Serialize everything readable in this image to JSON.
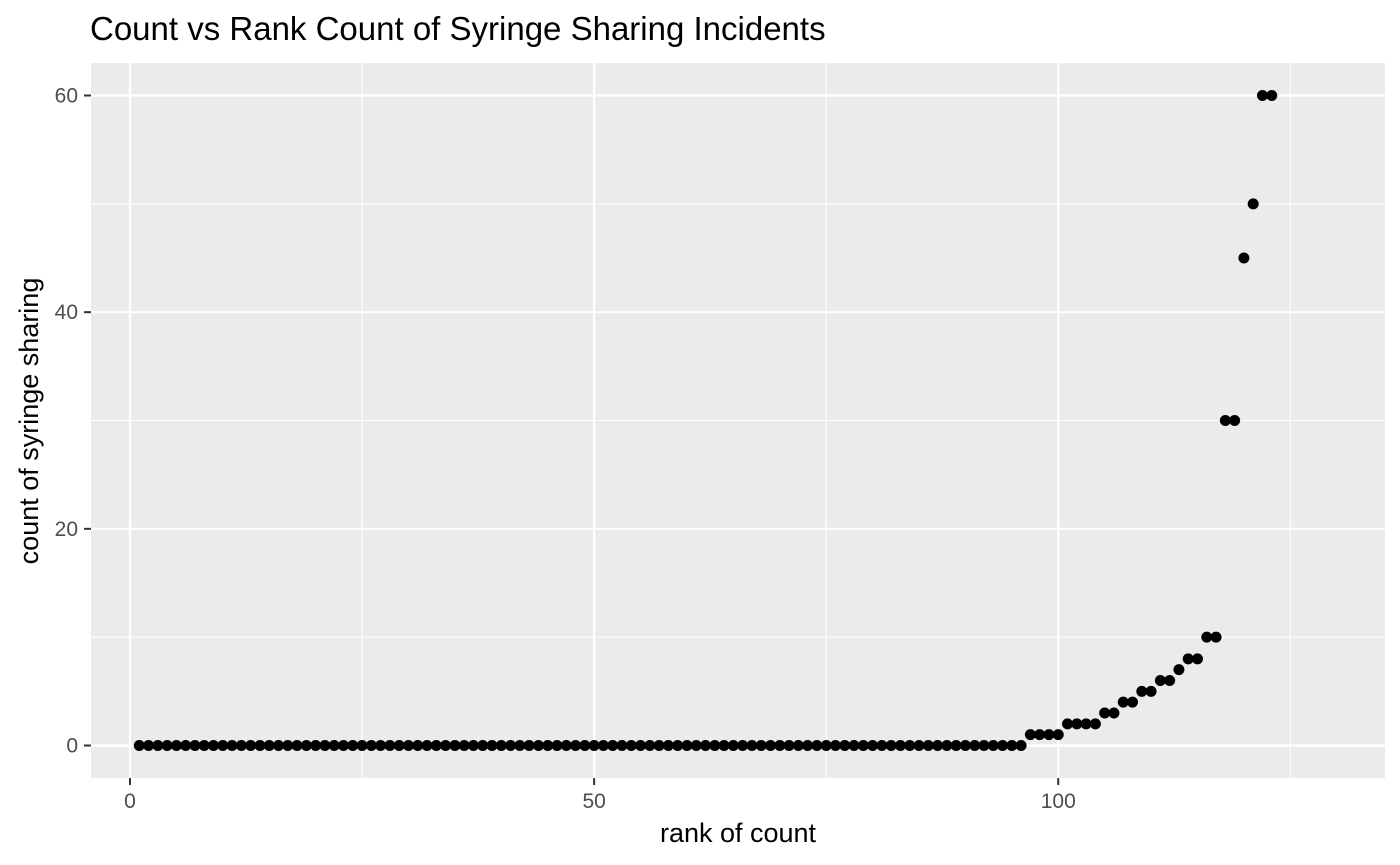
{
  "chart_data": {
    "type": "scatter",
    "title": "Count vs Rank Count of Syringe Sharing Incidents",
    "xlabel": "rank of count",
    "ylabel": "count of syringe sharing",
    "xlim": [
      -4.2,
      135.2
    ],
    "ylim": [
      -3,
      63
    ],
    "x_ticks": [
      0,
      50,
      100
    ],
    "x_tick_labels": [
      "0",
      "50",
      "100"
    ],
    "y_ticks": [
      0,
      20,
      40,
      60
    ],
    "y_tick_labels": [
      "0",
      "20",
      "40",
      "60"
    ],
    "grid": true,
    "legend": "none",
    "colors": {
      "panel": "#ebebeb",
      "grid": "#ffffff",
      "point": "#000000",
      "tick_text": "#4d4d4d",
      "tick_mark": "#333333"
    },
    "series": [
      {
        "x": [
          1,
          2,
          3,
          4,
          5,
          6,
          7,
          8,
          9,
          10,
          11,
          12,
          13,
          14,
          15,
          16,
          17,
          18,
          19,
          20,
          21,
          22,
          23,
          24,
          25,
          26,
          27,
          28,
          29,
          30,
          31,
          32,
          33,
          34,
          35,
          36,
          37,
          38,
          39,
          40,
          41,
          42,
          43,
          44,
          45,
          46,
          47,
          48,
          49,
          50,
          51,
          52,
          53,
          54,
          55,
          56,
          57,
          58,
          59,
          60,
          61,
          62,
          63,
          64,
          65,
          66,
          67,
          68,
          69,
          70,
          71,
          72,
          73,
          74,
          75,
          76,
          77,
          78,
          79,
          80,
          81,
          82,
          83,
          84,
          85,
          86,
          87,
          88,
          89,
          90,
          91,
          92,
          93,
          94,
          95,
          96,
          97,
          98,
          99,
          100,
          101,
          102,
          103,
          104,
          105,
          106,
          107,
          108,
          109,
          110,
          111,
          112,
          113,
          114,
          115,
          116,
          117,
          118,
          119,
          120,
          121,
          122,
          123
        ],
        "y": [
          0,
          0,
          0,
          0,
          0,
          0,
          0,
          0,
          0,
          0,
          0,
          0,
          0,
          0,
          0,
          0,
          0,
          0,
          0,
          0,
          0,
          0,
          0,
          0,
          0,
          0,
          0,
          0,
          0,
          0,
          0,
          0,
          0,
          0,
          0,
          0,
          0,
          0,
          0,
          0,
          0,
          0,
          0,
          0,
          0,
          0,
          0,
          0,
          0,
          0,
          0,
          0,
          0,
          0,
          0,
          0,
          0,
          0,
          0,
          0,
          0,
          0,
          0,
          0,
          0,
          0,
          0,
          0,
          0,
          0,
          0,
          0,
          0,
          0,
          0,
          0,
          0,
          0,
          0,
          0,
          0,
          0,
          0,
          0,
          0,
          0,
          0,
          0,
          0,
          0,
          0,
          0,
          0,
          0,
          0,
          0,
          1,
          1,
          1,
          1,
          2,
          2,
          2,
          2,
          3,
          3,
          4,
          4,
          5,
          5,
          6,
          6,
          7,
          8,
          8,
          10,
          10,
          30,
          30,
          45,
          50,
          60,
          60
        ]
      }
    ]
  }
}
